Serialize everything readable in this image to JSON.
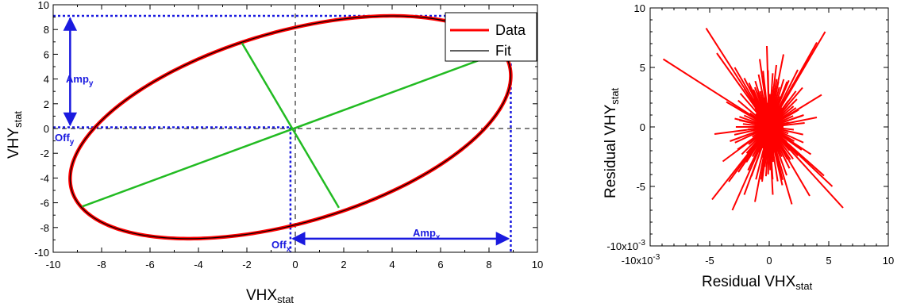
{
  "chart_data": [
    {
      "type": "line",
      "xlabel": {
        "main": "VHX",
        "sub": "stat"
      },
      "ylabel": {
        "main": "VHY",
        "sub": "stat"
      },
      "xlim": [
        -10,
        10
      ],
      "ylim": [
        -10,
        10
      ],
      "xticks": [
        -10,
        -8,
        -6,
        -4,
        -2,
        0,
        2,
        4,
        6,
        8,
        10
      ],
      "yticks": [
        -10,
        -8,
        -6,
        -4,
        -2,
        0,
        2,
        4,
        6,
        8,
        10
      ],
      "xtick_labels": [
        "-10",
        "-8",
        "-6",
        "-4",
        "-2",
        "0",
        "2",
        "4",
        "6",
        "8",
        "10"
      ],
      "ytick_labels": [
        "-10",
        "-8",
        "-6",
        "-4",
        "-2",
        "0",
        "2",
        "4",
        "6",
        "8",
        "10"
      ],
      "series": [
        {
          "name": "Data",
          "color": "#ff0000",
          "shape": "ellipse"
        },
        {
          "name": "Fit",
          "color": "#000000",
          "shape": "ellipse"
        }
      ],
      "ellipse": {
        "center": [
          -0.2,
          0.1
        ],
        "amp_x": 9.1,
        "amp_y": 9.0,
        "phase_deg": 62.5
      },
      "major_axis": [
        [
          -8.8,
          -6.3
        ],
        [
          8.4,
          6.1
        ]
      ],
      "minor_axis": [
        [
          -2.2,
          6.9
        ],
        [
          1.8,
          -6.4
        ]
      ],
      "axes_color": "#22bb22",
      "guides": {
        "max_y": 9.1,
        "max_x": 8.9,
        "offset_x": -0.2,
        "offset_y": 0.1,
        "color": "#1a1adf"
      },
      "annotations": {
        "amp_y": {
          "main": "Amp",
          "sub": "y"
        },
        "off_y": {
          "main": "Off",
          "sub": "y"
        },
        "off_x": {
          "main": "Off",
          "sub": "x"
        },
        "amp_x": {
          "main": "Amp",
          "sub": "x"
        }
      },
      "legend": {
        "position": "top-right",
        "entries": [
          "Data",
          "Fit"
        ]
      }
    },
    {
      "type": "scatter",
      "xlabel": {
        "main": "Residual VHX",
        "sub": "stat"
      },
      "ylabel": {
        "main": "Residual VHY",
        "sub": "stat"
      },
      "xlim": [
        -0.01,
        0.01
      ],
      "ylim": [
        -0.01,
        0.01
      ],
      "xticks": [
        -0.01,
        -0.005,
        0,
        0.005,
        0.01
      ],
      "yticks": [
        -0.01,
        -0.005,
        0,
        0.005,
        0.01
      ],
      "xtick_labels": [
        "-10x10",
        "-5",
        "0",
        "5",
        "10"
      ],
      "ytick_labels": [
        "-10x10",
        "-5",
        "0",
        "5",
        "10"
      ],
      "tick_exponent": "-3",
      "series": [
        {
          "color": "#ff0000",
          "style": "spokes-from-origin",
          "points": [
            [
              -0.0089,
              0.0057
            ],
            [
              -0.0053,
              0.0083
            ],
            [
              -0.0044,
              0.0062
            ],
            [
              -0.0029,
              0.005
            ],
            [
              -0.0021,
              0.0041
            ],
            [
              -0.0017,
              0.0037
            ],
            [
              -0.0008,
              0.0057
            ],
            [
              -0.0002,
              0.0068
            ],
            [
              0.0006,
              0.0052
            ],
            [
              0.0012,
              0.0061
            ],
            [
              0.0024,
              0.0048
            ],
            [
              0.0034,
              0.0058
            ],
            [
              0.004,
              0.0071
            ],
            [
              0.0047,
              0.008
            ],
            [
              0.0028,
              0.0033
            ],
            [
              0.0044,
              0.0027
            ],
            [
              0.0029,
              0.001
            ],
            [
              0.004,
              0.0008
            ],
            [
              0.0021,
              -0.0012
            ],
            [
              0.0035,
              -0.0023
            ],
            [
              0.0046,
              -0.0041
            ],
            [
              0.0062,
              -0.0068
            ],
            [
              0.0034,
              -0.0058
            ],
            [
              0.0019,
              -0.0065
            ],
            [
              0.0011,
              -0.0049
            ],
            [
              0.0003,
              -0.0057
            ],
            [
              -0.0006,
              -0.0046
            ],
            [
              -0.0012,
              -0.0063
            ],
            [
              -0.0021,
              -0.0057
            ],
            [
              -0.0031,
              -0.007
            ],
            [
              -0.0034,
              -0.0046
            ],
            [
              -0.0048,
              -0.0061
            ],
            [
              -0.0039,
              -0.0029
            ],
            [
              -0.0033,
              -0.0012
            ],
            [
              -0.0029,
              0.0007
            ],
            [
              -0.0046,
              -0.0006
            ],
            [
              -0.0036,
              0.0021
            ],
            [
              0.0016,
              0.0022
            ],
            [
              -0.0014,
              -0.0025
            ],
            [
              0.0009,
              -0.0031
            ],
            [
              0.0015,
              0.0038
            ],
            [
              -0.001,
              0.0029
            ],
            [
              0.0053,
              -0.005
            ],
            [
              -0.0026,
              -0.0038
            ]
          ]
        }
      ],
      "grid": false
    }
  ]
}
